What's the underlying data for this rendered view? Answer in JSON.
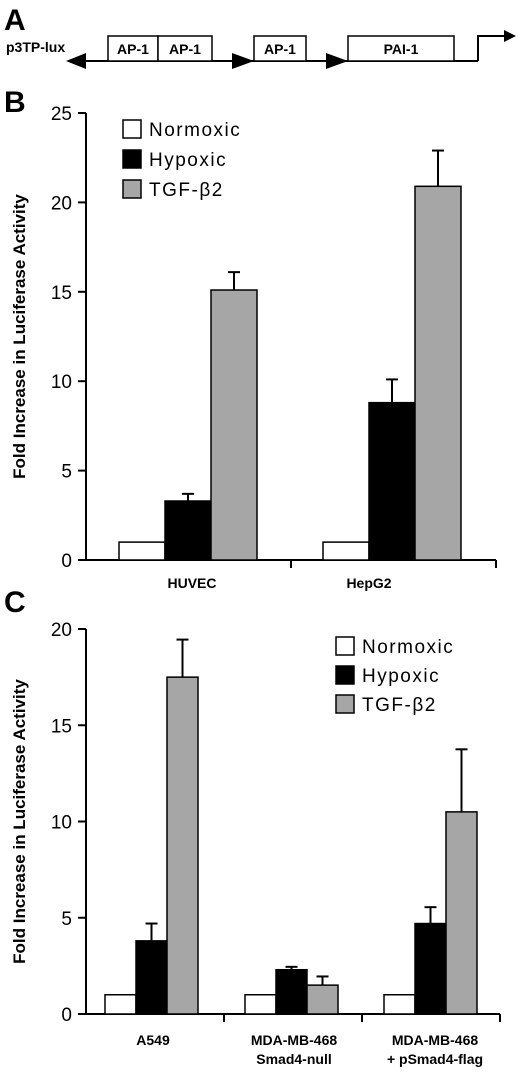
{
  "panel_a": {
    "letter": "A",
    "construct_label": "p3TP-lux",
    "boxes": [
      "AP-1",
      "AP-1",
      "AP-1",
      "PAI-1"
    ]
  },
  "colors": {
    "normoxic": "#ffffff",
    "hypoxic": "#000000",
    "tgf": "#a6a6a6"
  },
  "chart_data": [
    {
      "panel": "B",
      "type": "bar",
      "title": "",
      "xlabel": "",
      "ylabel": "Fold Increase in Luciferase Activity",
      "ylim": [
        0,
        25
      ],
      "yticks": [
        0,
        5,
        10,
        15,
        20,
        25
      ],
      "categories": [
        "HUVEC",
        "HepG2"
      ],
      "legend_placement": "top-left",
      "grid": false,
      "series": [
        {
          "name": "Normoxic",
          "values": [
            1.0,
            1.0
          ],
          "errors": [
            0,
            0
          ]
        },
        {
          "name": "Hypoxic",
          "values": [
            3.3,
            8.8
          ],
          "errors": [
            0.4,
            1.3
          ]
        },
        {
          "name": "TGF-β2",
          "values": [
            15.1,
            20.9
          ],
          "errors": [
            1.0,
            2.0
          ]
        }
      ]
    },
    {
      "panel": "C",
      "type": "bar",
      "title": "",
      "xlabel": "",
      "ylabel": "Fold Increase in Luciferase Activity",
      "ylim": [
        0,
        20
      ],
      "yticks": [
        0,
        5,
        10,
        15,
        20
      ],
      "categories": [
        [
          "A549"
        ],
        [
          "MDA-MB-468",
          "Smad4-null"
        ],
        [
          "MDA-MB-468",
          "+ pSmad4-flag"
        ]
      ],
      "legend_placement": "top-right",
      "grid": false,
      "series": [
        {
          "name": "Normoxic",
          "values": [
            1.0,
            1.0,
            1.0
          ],
          "errors": [
            0,
            0,
            0
          ]
        },
        {
          "name": "Hypoxic",
          "values": [
            3.8,
            2.3,
            4.7
          ],
          "errors": [
            0.9,
            0.15,
            0.85
          ]
        },
        {
          "name": "TGF-β2",
          "values": [
            17.5,
            1.5,
            10.5
          ],
          "errors": [
            1.95,
            0.45,
            3.25
          ]
        }
      ]
    }
  ]
}
